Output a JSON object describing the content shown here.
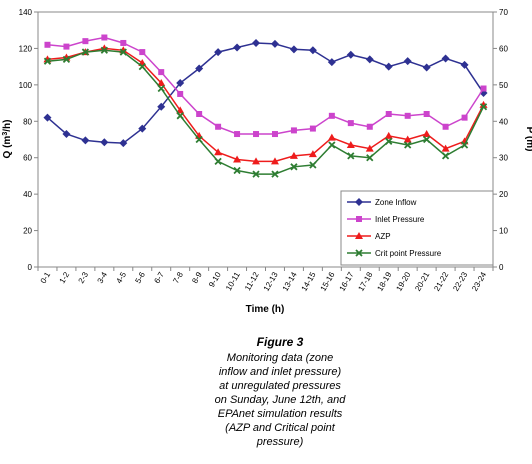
{
  "chart_data": {
    "type": "line",
    "categories": [
      "0-1",
      "1-2",
      "2-3",
      "3-4",
      "4-5",
      "5-6",
      "6-7",
      "7-8",
      "8-9",
      "9-10",
      "10-11",
      "11-12",
      "12-13",
      "13-14",
      "14-15",
      "15-16",
      "16-17",
      "17-18",
      "18-19",
      "19-20",
      "20-21",
      "21-22",
      "22-23",
      "23-24"
    ],
    "xlabel": "Time (h)",
    "ylabel": "Q (m³/h)",
    "y2label": "P (m)",
    "ylim": [
      0,
      140
    ],
    "y2lim": [
      0,
      70
    ],
    "yticks": [
      "0",
      "20",
      "40",
      "60",
      "80",
      "100",
      "120",
      "140"
    ],
    "y2ticks": [
      "0",
      "10",
      "20",
      "30",
      "40",
      "50",
      "60",
      "70"
    ],
    "legend_position": "bottom-right",
    "grid": false,
    "series": [
      {
        "name": "Zone Inflow",
        "axis": "left",
        "color": "#2e3192",
        "marker": "diamond",
        "values": [
          82,
          73,
          69.5,
          68.5,
          68,
          76,
          88,
          101,
          109,
          118,
          120.5,
          123,
          122.5,
          119.5,
          119,
          112.5,
          116.5,
          114,
          110,
          113,
          109.5,
          114.5,
          111,
          95.5
        ]
      },
      {
        "name": "Inlet Pressure",
        "axis": "right",
        "color": "#cc44cc",
        "marker": "square",
        "values": [
          61,
          60.5,
          62,
          63,
          61.5,
          59,
          53.5,
          47.5,
          42,
          38.5,
          36.5,
          36.5,
          36.5,
          37.5,
          38,
          41.5,
          39.5,
          38.5,
          42,
          41.5,
          42,
          38.5,
          41,
          49
        ]
      },
      {
        "name": "AZP",
        "axis": "right",
        "color": "#ee1c1c",
        "marker": "triangle",
        "values": [
          57,
          57.5,
          59,
          60,
          59.5,
          56,
          50.5,
          43,
          36,
          31.5,
          29.5,
          29,
          29,
          30.5,
          31,
          35.5,
          33.5,
          32.5,
          36,
          35,
          36.5,
          32.5,
          34.5,
          44.5
        ]
      },
      {
        "name": "Crit point Pressure",
        "axis": "right",
        "color": "#2e7d32",
        "marker": "x",
        "values": [
          56.5,
          57,
          59,
          59.5,
          59,
          55,
          49,
          41.5,
          35,
          29,
          26.5,
          25.5,
          25.5,
          27.5,
          28,
          33.5,
          30.5,
          30,
          34.5,
          33.5,
          35,
          30.5,
          33.5,
          44
        ]
      }
    ]
  },
  "caption": {
    "title": "Figure 3",
    "lines": [
      "Monitoring data (zone",
      "inflow and inlet pressure)",
      "at unregulated pressures",
      "on Sunday, June 12th, and",
      "EPAnet simulation results",
      "(AZP and Critical point",
      "pressure)"
    ]
  }
}
